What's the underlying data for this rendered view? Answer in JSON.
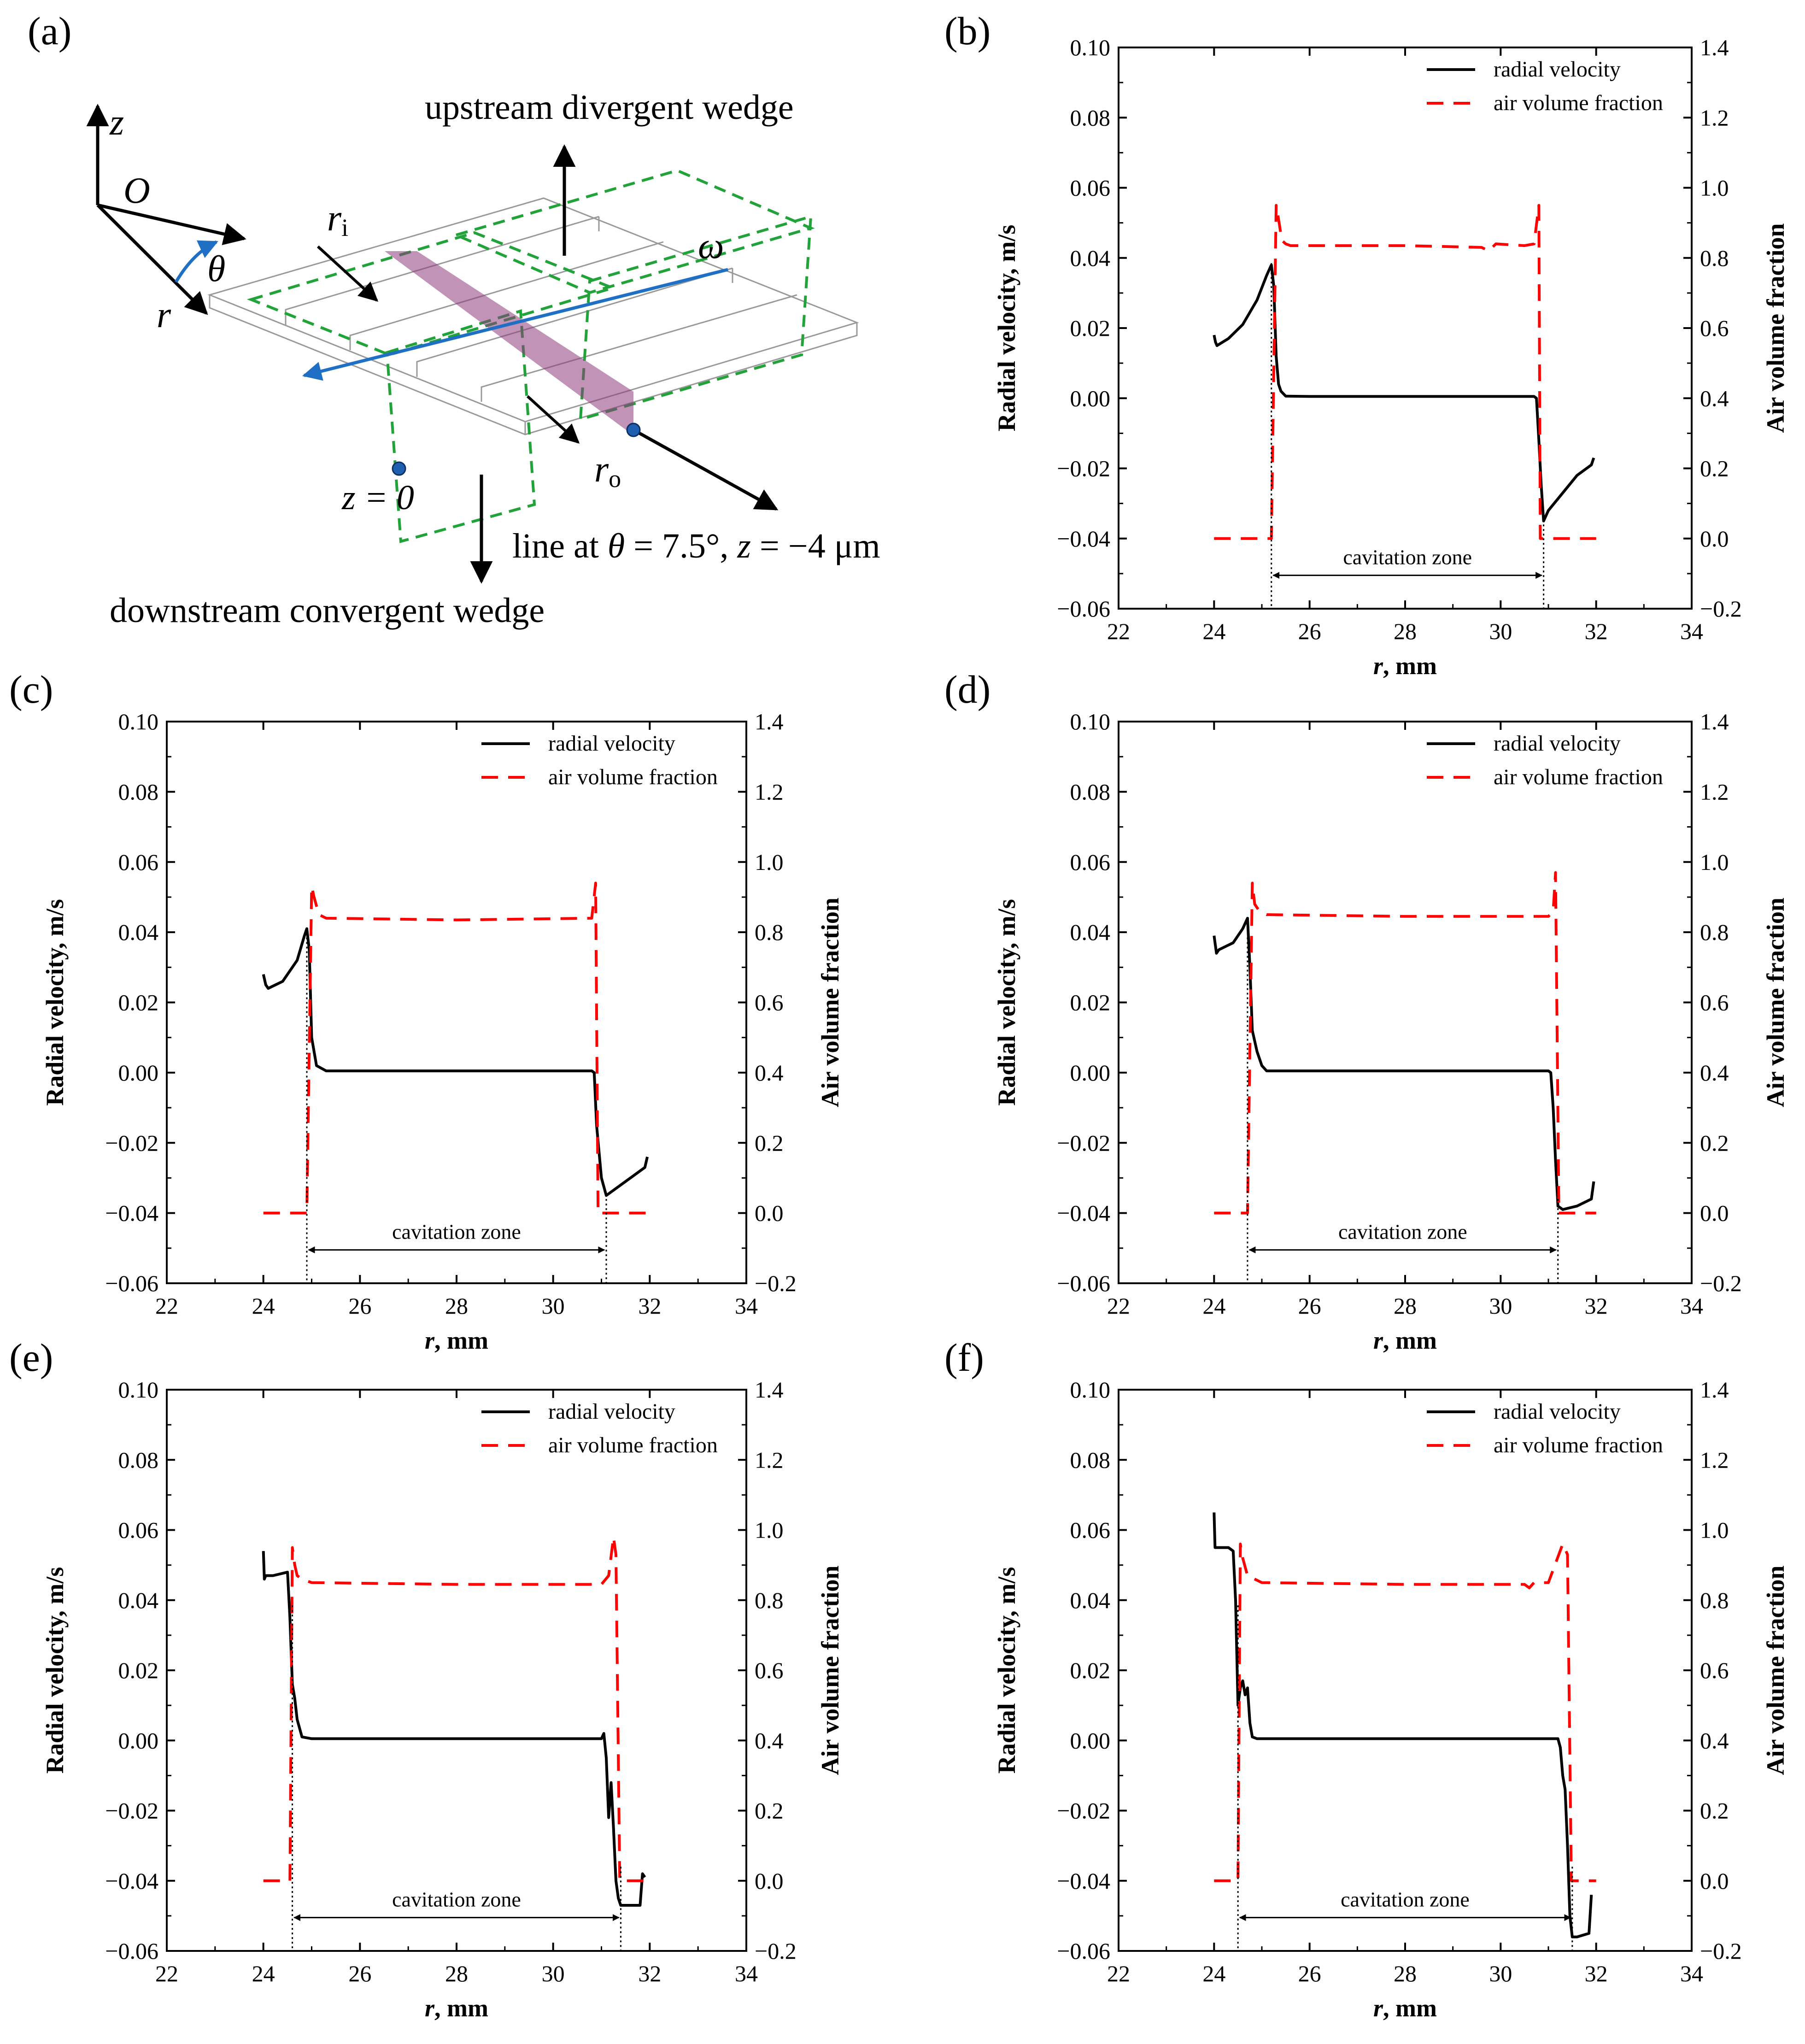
{
  "diagram": {
    "panel_label": "(a)",
    "axis_z": "z",
    "axis_O": "O",
    "axis_theta": "θ",
    "axis_r": "r",
    "ri_main": "r",
    "ri_sub": "i",
    "ro_main": "r",
    "ro_sub": "o",
    "omega": "ω",
    "upstream": "upstream divergent wedge",
    "downstream": "downstream convergent wedge",
    "z0": "z = 0",
    "line_prefix": "line at ",
    "line_theta": "θ",
    "line_mid": " = 7.5°, ",
    "line_z": "z",
    "line_suffix": " = −4 μm"
  },
  "chart_data": [
    {
      "panel": "(b)",
      "type": "line",
      "xlabel_var": "r",
      "xlabel_unit": ", mm",
      "ylabel_left": "Radial velocity, m/s",
      "ylabel_right": "Air volume fraction",
      "xlim": [
        22,
        34
      ],
      "ylim_left": [
        -0.06,
        0.1
      ],
      "ylim_right": [
        -0.2,
        1.4
      ],
      "xticks": [
        "22",
        "24",
        "26",
        "28",
        "30",
        "32",
        "34"
      ],
      "yticks_left": [
        "0.10",
        "0.08",
        "0.06",
        "0.04",
        "0.02",
        "0.00",
        "−0.02",
        "−0.04",
        "−0.06"
      ],
      "yticks_right": [
        "1.4",
        "1.2",
        "1.0",
        "0.8",
        "0.6",
        "0.4",
        "0.2",
        "0.0",
        "−0.2"
      ],
      "legend": [
        "radial velocity",
        "air volume fraction"
      ],
      "annotation": "cavitation zone",
      "zone": [
        25.2,
        30.9
      ],
      "series": [
        {
          "name": "radial velocity",
          "axis": "left",
          "color": "#000000",
          "x": [
            24.0,
            24.03,
            24.06,
            24.3,
            24.6,
            24.9,
            25.1,
            25.2,
            25.25,
            25.3,
            25.35,
            25.4,
            25.5,
            26.0,
            28.0,
            30.0,
            30.7,
            30.75,
            30.8,
            30.85,
            30.9,
            31.0,
            31.3,
            31.6,
            31.9,
            31.95
          ],
          "y": [
            0.018,
            0.016,
            0.015,
            0.017,
            0.021,
            0.028,
            0.035,
            0.038,
            0.032,
            0.012,
            0.004,
            0.002,
            0.0006,
            0.0005,
            0.0005,
            0.0005,
            0.0005,
            0.0,
            -0.012,
            -0.025,
            -0.035,
            -0.032,
            -0.027,
            -0.022,
            -0.019,
            -0.017
          ]
        },
        {
          "name": "air volume fraction",
          "axis": "right",
          "color": "#ff0000",
          "dashed": true,
          "x": [
            24.0,
            25.2,
            25.3,
            25.35,
            25.42,
            25.5,
            25.6,
            28.0,
            29.6,
            29.75,
            29.9,
            30.5,
            30.7,
            30.8,
            30.83,
            30.95,
            31.1,
            32.0
          ],
          "y": [
            0.0,
            0.0,
            0.95,
            0.91,
            0.85,
            0.84,
            0.835,
            0.835,
            0.83,
            0.82,
            0.84,
            0.835,
            0.84,
            0.95,
            0.0,
            0.0,
            0.0,
            0.0
          ]
        }
      ]
    },
    {
      "panel": "(c)",
      "type": "line",
      "xlabel_var": "r",
      "xlabel_unit": ", mm",
      "ylabel_left": "Radial velocity, m/s",
      "ylabel_right": "Air volume fraction",
      "xlim": [
        22,
        34
      ],
      "ylim_left": [
        -0.06,
        0.1
      ],
      "ylim_right": [
        -0.2,
        1.4
      ],
      "xticks": [
        "22",
        "24",
        "26",
        "28",
        "30",
        "32",
        "34"
      ],
      "yticks_left": [
        "0.10",
        "0.08",
        "0.06",
        "0.04",
        "0.02",
        "0.00",
        "−0.02",
        "−0.04",
        "−0.06"
      ],
      "yticks_right": [
        "1.4",
        "1.2",
        "1.0",
        "0.8",
        "0.6",
        "0.4",
        "0.2",
        "0.0",
        "−0.2"
      ],
      "legend": [
        "radial velocity",
        "air volume fraction"
      ],
      "annotation": "cavitation zone",
      "zone": [
        24.9,
        31.1
      ],
      "series": [
        {
          "name": "radial velocity",
          "axis": "left",
          "color": "#000000",
          "x": [
            24.0,
            24.05,
            24.1,
            24.4,
            24.7,
            24.85,
            24.9,
            24.95,
            25.0,
            25.1,
            25.3,
            28.0,
            30.8,
            30.85,
            30.9,
            31.0,
            31.1,
            31.4,
            31.7,
            31.9,
            31.95
          ],
          "y": [
            0.028,
            0.025,
            0.024,
            0.026,
            0.032,
            0.039,
            0.041,
            0.035,
            0.01,
            0.002,
            0.0005,
            0.0005,
            0.0005,
            0.0,
            -0.015,
            -0.03,
            -0.035,
            -0.032,
            -0.029,
            -0.027,
            -0.024
          ]
        },
        {
          "name": "air volume fraction",
          "axis": "right",
          "color": "#ff0000",
          "dashed": true,
          "x": [
            24.0,
            24.9,
            25.0,
            25.05,
            25.15,
            25.3,
            28.0,
            30.8,
            30.88,
            30.93,
            31.0,
            31.1,
            32.0
          ],
          "y": [
            0.0,
            0.0,
            0.93,
            0.9,
            0.85,
            0.84,
            0.835,
            0.84,
            0.94,
            0.0,
            0.0,
            0.0,
            0.0
          ]
        }
      ]
    },
    {
      "panel": "(d)",
      "type": "line",
      "xlabel_var": "r",
      "xlabel_unit": ", mm",
      "ylabel_left": "Radial velocity, m/s",
      "ylabel_right": "Air volume fraction",
      "xlim": [
        22,
        34
      ],
      "ylim_left": [
        -0.06,
        0.1
      ],
      "ylim_right": [
        -0.2,
        1.4
      ],
      "xticks": [
        "22",
        "24",
        "26",
        "28",
        "30",
        "32",
        "34"
      ],
      "yticks_left": [
        "0.10",
        "0.08",
        "0.06",
        "0.04",
        "0.02",
        "0.00",
        "−0.02",
        "−0.04",
        "−0.06"
      ],
      "yticks_right": [
        "1.4",
        "1.2",
        "1.0",
        "0.8",
        "0.6",
        "0.4",
        "0.2",
        "0.0",
        "−0.2"
      ],
      "legend": [
        "radial velocity",
        "air volume fraction"
      ],
      "annotation": "cavitation zone",
      "zone": [
        24.7,
        31.2
      ],
      "series": [
        {
          "name": "radial velocity",
          "axis": "left",
          "color": "#000000",
          "x": [
            24.0,
            24.05,
            24.1,
            24.4,
            24.6,
            24.7,
            24.75,
            24.8,
            24.9,
            25.0,
            25.1,
            28.0,
            31.0,
            31.05,
            31.1,
            31.15,
            31.2,
            31.3,
            31.6,
            31.9,
            31.95
          ],
          "y": [
            0.039,
            0.034,
            0.035,
            0.037,
            0.041,
            0.044,
            0.03,
            0.012,
            0.006,
            0.002,
            0.0005,
            0.0005,
            0.0005,
            0.0,
            -0.01,
            -0.025,
            -0.038,
            -0.039,
            -0.038,
            -0.036,
            -0.031
          ]
        },
        {
          "name": "air volume fraction",
          "axis": "right",
          "color": "#ff0000",
          "dashed": true,
          "x": [
            24.0,
            24.7,
            24.8,
            24.85,
            24.95,
            25.1,
            28.0,
            31.0,
            31.1,
            31.15,
            31.22,
            31.3,
            32.0
          ],
          "y": [
            0.0,
            0.0,
            0.94,
            0.88,
            0.86,
            0.85,
            0.845,
            0.845,
            0.86,
            0.97,
            0.0,
            0.0,
            0.0
          ]
        }
      ]
    },
    {
      "panel": "(e)",
      "type": "line",
      "xlabel_var": "r",
      "xlabel_unit": ", mm",
      "ylabel_left": "Radial velocity, m/s",
      "ylabel_right": "Air volume fraction",
      "xlim": [
        22,
        34
      ],
      "ylim_left": [
        -0.06,
        0.1
      ],
      "ylim_right": [
        -0.2,
        1.4
      ],
      "xticks": [
        "22",
        "24",
        "26",
        "28",
        "30",
        "32",
        "34"
      ],
      "yticks_left": [
        "0.10",
        "0.08",
        "0.06",
        "0.04",
        "0.02",
        "0.00",
        "−0.02",
        "−0.04",
        "−0.06"
      ],
      "yticks_right": [
        "1.4",
        "1.2",
        "1.0",
        "0.8",
        "0.6",
        "0.4",
        "0.2",
        "0.0",
        "−0.2"
      ],
      "legend": [
        "radial velocity",
        "air volume fraction"
      ],
      "annotation": "cavitation zone",
      "zone": [
        24.6,
        31.4
      ],
      "series": [
        {
          "name": "radial velocity",
          "axis": "left",
          "color": "#000000",
          "x": [
            24.0,
            24.02,
            24.05,
            24.2,
            24.5,
            24.55,
            24.6,
            24.65,
            24.7,
            24.8,
            25.0,
            28.0,
            31.0,
            31.05,
            31.1,
            31.15,
            31.2,
            31.25,
            31.3,
            31.35,
            31.4,
            31.5,
            31.8,
            31.85,
            31.9
          ],
          "y": [
            0.054,
            0.046,
            0.047,
            0.047,
            0.048,
            0.035,
            0.016,
            0.012,
            0.006,
            0.001,
            0.0005,
            0.0005,
            0.0005,
            0.002,
            -0.005,
            -0.022,
            -0.012,
            -0.025,
            -0.04,
            -0.045,
            -0.047,
            -0.047,
            -0.047,
            -0.038,
            -0.039
          ]
        },
        {
          "name": "air volume fraction",
          "axis": "right",
          "color": "#ff0000",
          "dashed": true,
          "x": [
            24.0,
            24.55,
            24.6,
            24.65,
            24.7,
            24.8,
            25.0,
            28.0,
            31.0,
            31.15,
            31.25,
            31.3,
            31.38,
            31.5,
            32.0
          ],
          "y": [
            0.0,
            0.0,
            0.95,
            0.9,
            0.87,
            0.86,
            0.85,
            0.845,
            0.845,
            0.87,
            0.98,
            0.93,
            0.0,
            0.0,
            0.0
          ]
        }
      ]
    },
    {
      "panel": "(f)",
      "type": "line",
      "xlabel_var": "r",
      "xlabel_unit": ", mm",
      "ylabel_left": "Radial velocity, m/s",
      "ylabel_right": "Air volume fraction",
      "xlim": [
        22,
        34
      ],
      "ylim_left": [
        -0.06,
        0.1
      ],
      "ylim_right": [
        -0.2,
        1.4
      ],
      "xticks": [
        "22",
        "24",
        "26",
        "28",
        "30",
        "32",
        "34"
      ],
      "yticks_left": [
        "0.10",
        "0.08",
        "0.06",
        "0.04",
        "0.02",
        "0.00",
        "−0.02",
        "−0.04",
        "−0.06"
      ],
      "yticks_right": [
        "1.4",
        "1.2",
        "1.0",
        "0.8",
        "0.6",
        "0.4",
        "0.2",
        "0.0",
        "−0.2"
      ],
      "legend": [
        "radial velocity",
        "air volume fraction"
      ],
      "annotation": "cavitation zone",
      "zone": [
        24.5,
        31.5
      ],
      "series": [
        {
          "name": "radial velocity",
          "axis": "left",
          "color": "#000000",
          "x": [
            24.0,
            24.02,
            24.05,
            24.3,
            24.4,
            24.45,
            24.5,
            24.55,
            24.6,
            24.65,
            24.7,
            24.75,
            24.8,
            24.9,
            25.0,
            28.0,
            31.2,
            31.25,
            31.3,
            31.35,
            31.4,
            31.45,
            31.5,
            31.6,
            31.85,
            31.9
          ],
          "y": [
            0.065,
            0.055,
            0.055,
            0.055,
            0.054,
            0.04,
            0.01,
            0.015,
            0.017,
            0.013,
            0.015,
            0.005,
            0.001,
            0.0005,
            0.0005,
            0.0005,
            0.0005,
            -0.002,
            -0.01,
            -0.014,
            -0.03,
            -0.05,
            -0.056,
            -0.056,
            -0.055,
            -0.044
          ]
        },
        {
          "name": "air volume fraction",
          "axis": "right",
          "color": "#ff0000",
          "dashed": true,
          "x": [
            24.0,
            24.5,
            24.55,
            24.6,
            24.7,
            24.85,
            25.0,
            28.0,
            30.5,
            30.6,
            30.7,
            31.0,
            31.3,
            31.4,
            31.48,
            31.6,
            32.0
          ],
          "y": [
            0.0,
            0.0,
            0.96,
            0.92,
            0.87,
            0.86,
            0.85,
            0.845,
            0.845,
            0.835,
            0.85,
            0.85,
            0.96,
            0.93,
            0.0,
            0.0,
            0.0
          ]
        }
      ]
    }
  ]
}
